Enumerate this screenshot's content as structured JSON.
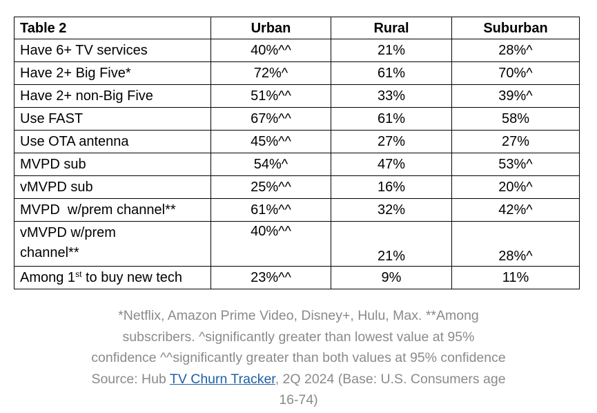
{
  "table": {
    "title": "Table 2",
    "columns": [
      "Urban",
      "Rural",
      "Suburban"
    ],
    "rows": [
      {
        "label": "Have 6+ TV services",
        "values": [
          "40%^^",
          "21%",
          "28%^"
        ]
      },
      {
        "label": "Have 2+ Big Five*",
        "values": [
          "72%^",
          "61%",
          "70%^"
        ]
      },
      {
        "label": "Have 2+ non-Big Five",
        "values": [
          "51%^^",
          "33%",
          "39%^"
        ]
      },
      {
        "label": "Use FAST",
        "values": [
          "67%^^",
          "61%",
          "58%"
        ]
      },
      {
        "label": "Use OTA antenna",
        "values": [
          "45%^^",
          "27%",
          "27%"
        ]
      },
      {
        "label": "MVPD sub",
        "values": [
          "54%^",
          "47%",
          "53%^"
        ]
      },
      {
        "label": "vMVPD sub",
        "values": [
          "25%^^",
          "16%",
          "20%^"
        ]
      },
      {
        "label": "MVPD  w/prem channel**",
        "values": [
          "61%^^",
          "32%",
          "42%^"
        ]
      },
      {
        "label": "vMVPD w/prem channel**",
        "values": [
          "40%^^",
          "21%",
          "28%^"
        ]
      },
      {
        "label_prefix": "Among 1",
        "label_sup": "st",
        "label_suffix": " to buy new tech",
        "values": [
          "23%^^",
          "9%",
          "11%"
        ]
      }
    ]
  },
  "caption": {
    "text_before_link": "*Netflix, Amazon Prime Video, Disney+, Hulu, Max. **Among subscribers. ^significantly greater than lowest value at 95% confidence ^^significantly greater than both values at 95% confidence Source: Hub ",
    "link_text": "TV Churn Tracker",
    "text_after_link": ", 2Q 2024 (Base: U.S. Consumers age 16-74)",
    "link_color": "#1d5fa8",
    "text_color": "#8a8a8a"
  }
}
